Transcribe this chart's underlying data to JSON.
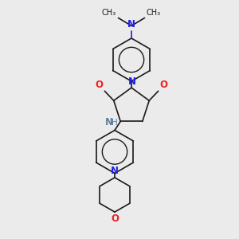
{
  "bg_color": "#ebebeb",
  "bond_color": "#1a1a1a",
  "n_color": "#2020ee",
  "o_color": "#ee2020",
  "nh_color": "#6080a0",
  "figsize": [
    3.0,
    3.0
  ],
  "dpi": 100,
  "xlim": [
    0,
    10
  ],
  "ylim": [
    0,
    10
  ]
}
